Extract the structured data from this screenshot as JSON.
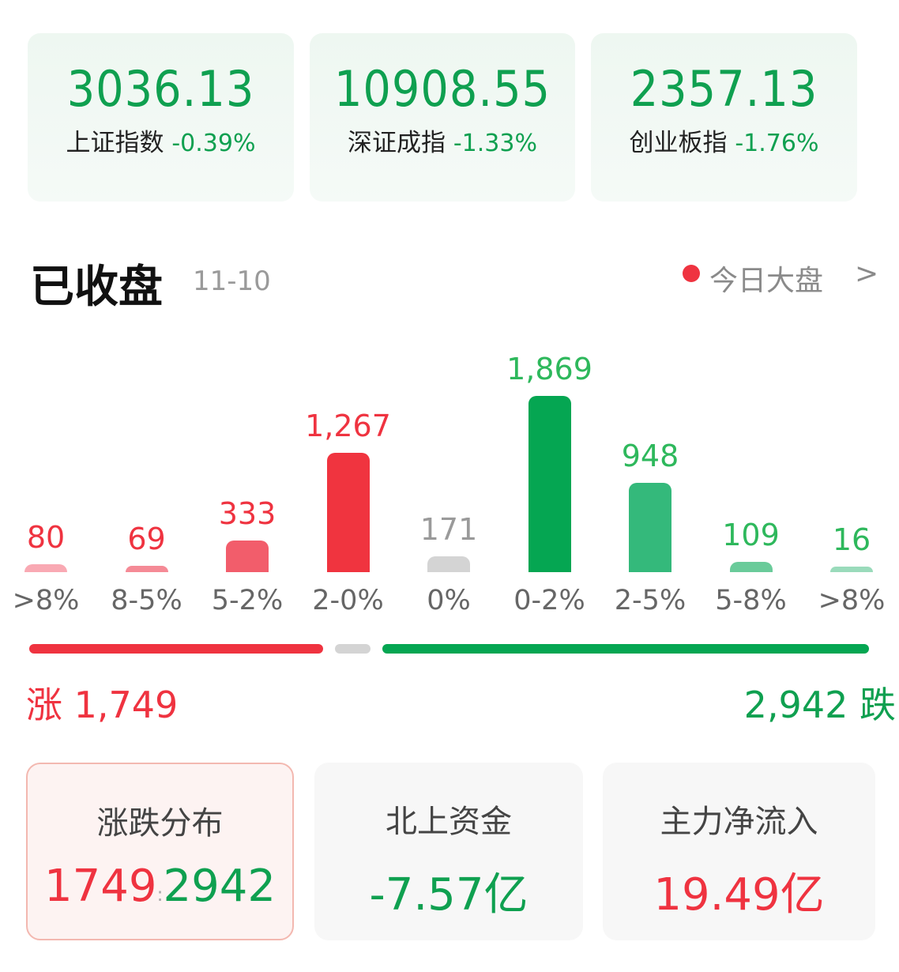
{
  "colors": {
    "up": "#ef3340",
    "down": "#05a652",
    "flat": "#d4d4d4"
  },
  "indices": [
    {
      "value": "3036.13",
      "name": "上证指数",
      "change": "-0.39%"
    },
    {
      "value": "10908.55",
      "name": "深证成指",
      "change": "-1.33%"
    },
    {
      "value": "2357.13",
      "name": "创业板指",
      "change": "-1.76%"
    }
  ],
  "header": {
    "title": "已收盘",
    "date": "11-10",
    "link": "今日大盘",
    "chevron": "chevron-right-icon"
  },
  "chart_data": {
    "type": "bar",
    "categories": [
      ">8%",
      "8-5%",
      "5-2%",
      "2-0%",
      "0%",
      "0-2%",
      "2-5%",
      "5-8%",
      ">8%"
    ],
    "values": [
      80,
      69,
      333,
      1267,
      171,
      1869,
      948,
      109,
      16
    ],
    "labels": [
      "80",
      "69",
      "333",
      "1,267",
      "171",
      "1,869",
      "948",
      "109",
      "16"
    ],
    "colors": [
      "#f9a9b3",
      "#f58a96",
      "#f25d6b",
      "#f0343f",
      "#d4d4d4",
      "#05a652",
      "#34b97b",
      "#6acb9a",
      "#9adbbb"
    ],
    "label_colors": [
      "#ef3340",
      "#ef3340",
      "#ef3340",
      "#ef3340",
      "#9a9a9a",
      "#2eb85c",
      "#2eb85c",
      "#2eb85c",
      "#2eb85c"
    ]
  },
  "summary": {
    "up_label": "涨",
    "up_count": "1,749",
    "down_count": "2,942",
    "down_label": "跌",
    "up_value": 1749,
    "flat_value": 171,
    "down_value": 2942
  },
  "cards": [
    {
      "title": "涨跌分布",
      "up": "1749",
      "sep": ":",
      "down": "2942",
      "selected": true
    },
    {
      "title": "北上资金",
      "value": "-7.57亿"
    },
    {
      "title": "主力净流入",
      "value": "19.49亿"
    }
  ]
}
